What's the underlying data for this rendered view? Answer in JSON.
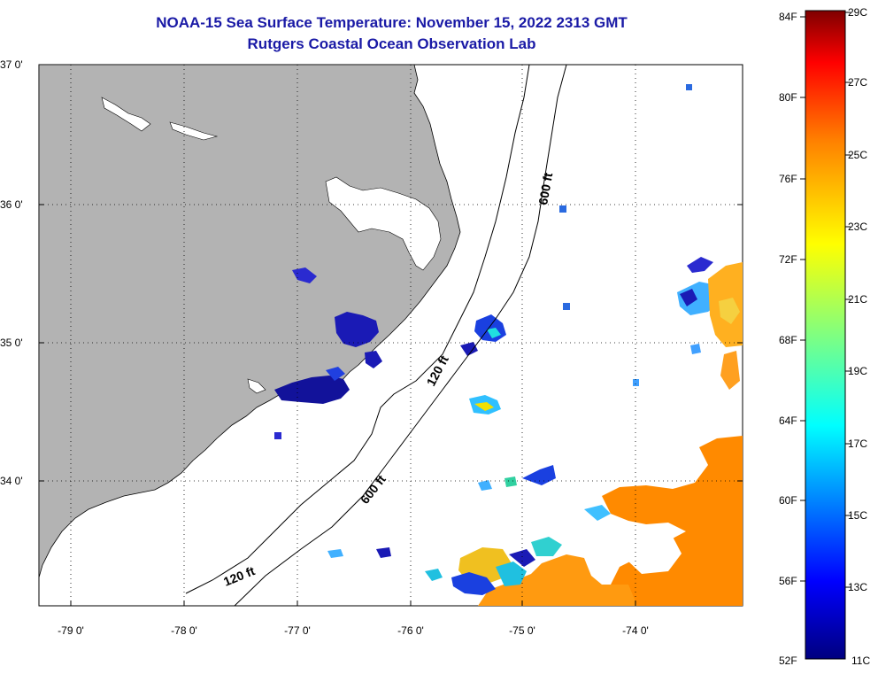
{
  "title_line1": "NOAA-15 Sea Surface Temperature:  November 15, 2022 2313 GMT",
  "title_line2": "Rutgers Coastal Ocean Observation Lab",
  "map": {
    "lat_labels": [
      "37 0'",
      "36 0'",
      "35 0'",
      "34 0'"
    ],
    "lon_labels": [
      "-79 0'",
      "-78 0'",
      "-77 0'",
      "-76 0'",
      "-75 0'",
      "-74 0'"
    ],
    "contour_labels": [
      "600 ft",
      "120 ft",
      "600 ft",
      "120 ft"
    ]
  },
  "colorbar": {
    "fahrenheit": [
      "84F",
      "80F",
      "76F",
      "72F",
      "68F",
      "64F",
      "60F",
      "56F",
      "52F"
    ],
    "celsius": [
      "29C",
      "27C",
      "25C",
      "23C",
      "21C",
      "19C",
      "17C",
      "15C",
      "13C",
      "11C"
    ],
    "colors": [
      "#7f0000",
      "#ff0000",
      "#ff8000",
      "#ffff00",
      "#00ffff",
      "#0000ff",
      "#00007f"
    ]
  }
}
